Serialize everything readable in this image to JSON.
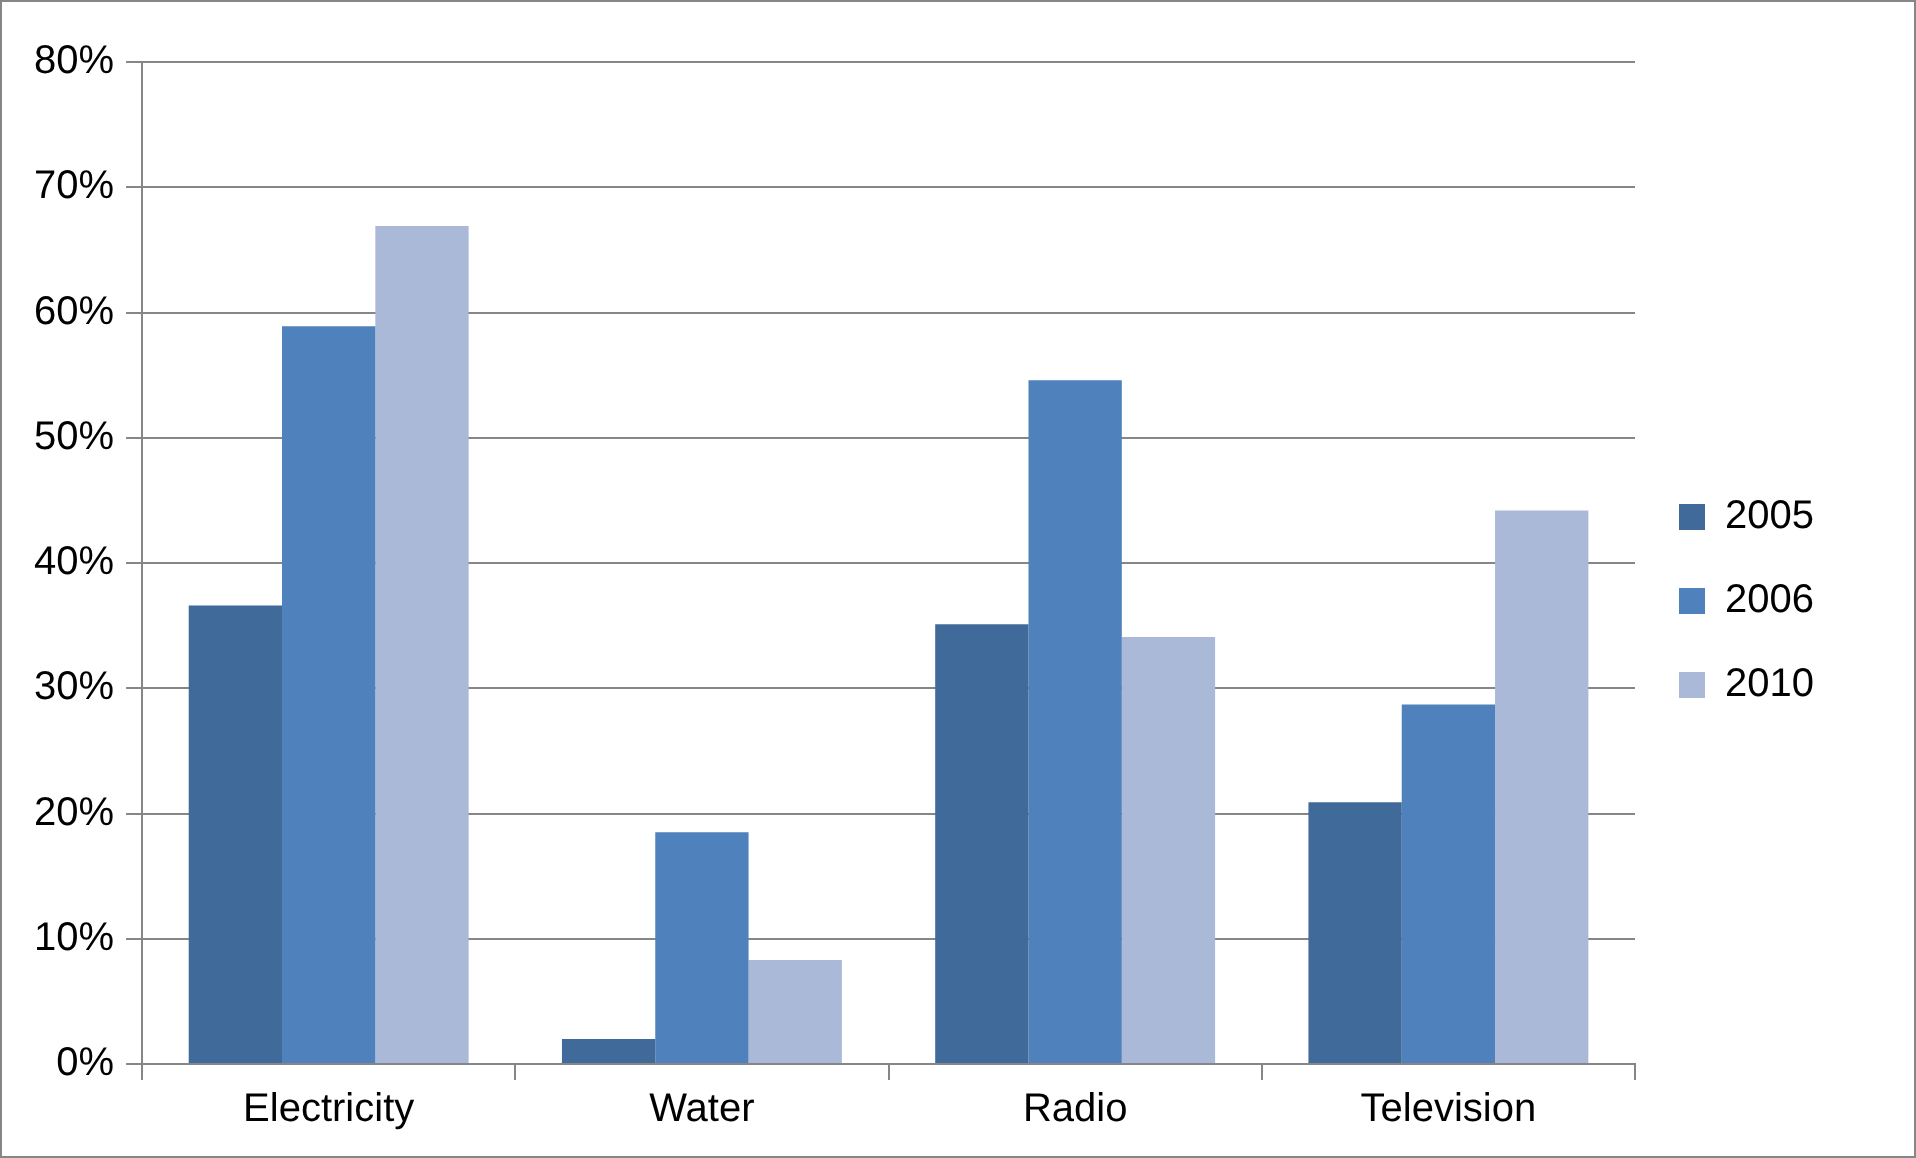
{
  "chart_data": {
    "type": "bar",
    "categories": [
      "Electricity",
      "Water",
      "Radio",
      "Television"
    ],
    "series": [
      {
        "name": "2005",
        "color": "#3f6a9a",
        "values": [
          36.6,
          2.0,
          35.1,
          20.9
        ]
      },
      {
        "name": "2006",
        "color": "#4f81bd",
        "values": [
          58.9,
          18.5,
          54.6,
          28.7
        ]
      },
      {
        "name": "2010",
        "color": "#aab9d8",
        "values": [
          66.9,
          8.3,
          34.1,
          44.2
        ]
      }
    ],
    "ylim": [
      0,
      80
    ],
    "yticks": [
      {
        "value": 0,
        "label": "0%"
      },
      {
        "value": 10,
        "label": "10%"
      },
      {
        "value": 20,
        "label": "20%"
      },
      {
        "value": 30,
        "label": "30%"
      },
      {
        "value": 40,
        "label": "40%"
      },
      {
        "value": 50,
        "label": "50%"
      },
      {
        "value": 60,
        "label": "60%"
      },
      {
        "value": 70,
        "label": "70%"
      },
      {
        "value": 80,
        "label": "80%"
      }
    ],
    "grid": "y",
    "legend": "right"
  }
}
